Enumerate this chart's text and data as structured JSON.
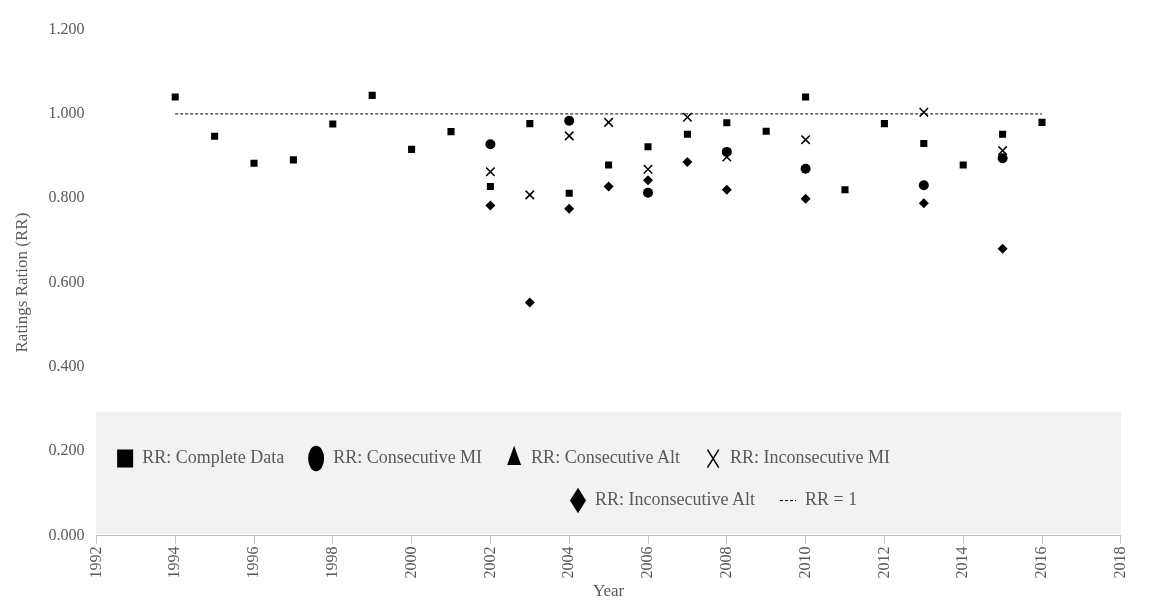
{
  "chart_data": {
    "type": "scatter",
    "xlabel": "Year",
    "ylabel": "Ratings Ration (RR)",
    "x": [
      1994,
      1995,
      1996,
      1997,
      1998,
      1999,
      2000,
      2001,
      2002,
      2003,
      2004,
      2005,
      2006,
      2007,
      2008,
      2009,
      2010,
      2011,
      2012,
      2013,
      2014,
      2015,
      2016
    ],
    "xlim": [
      1992,
      2018
    ],
    "xticks": [
      1992,
      1994,
      1996,
      1998,
      2000,
      2002,
      2004,
      2006,
      2008,
      2010,
      2012,
      2014,
      2016,
      2018
    ],
    "ylim": [
      0,
      1.2
    ],
    "yticks": [
      {
        "value": 0,
        "label": "0.000"
      },
      {
        "value": 0.2,
        "label": "0.200"
      },
      {
        "value": 0.4,
        "label": "0.400"
      },
      {
        "value": 0.6,
        "label": "0.600"
      },
      {
        "value": 0.8,
        "label": "0.800"
      },
      {
        "value": 1,
        "label": "1.000"
      },
      {
        "value": 1.2,
        "label": "1.200"
      }
    ],
    "legend": "bottom",
    "series": [
      {
        "name": "RR: Complete Data",
        "color": "#000000",
        "marker": "square",
        "values": [
          1.04,
          0.947,
          0.883,
          0.891,
          0.976,
          1.044,
          0.916,
          0.958,
          0.828,
          0.977,
          0.812,
          0.879,
          0.922,
          0.952,
          0.979,
          0.959,
          1.04,
          0.82,
          0.977,
          0.93,
          0.879,
          0.952,
          0.98
        ]
      },
      {
        "name": "RR: Consecutive MI",
        "color": "#000000",
        "marker": "circle",
        "values": [
          null,
          null,
          null,
          null,
          null,
          null,
          null,
          null,
          0.928,
          null,
          0.984,
          null,
          0.813,
          null,
          0.91,
          null,
          0.87,
          null,
          null,
          0.831,
          null,
          0.895,
          null
        ]
      },
      {
        "name": "RR: Consecutive Alt",
        "color": "#000000",
        "marker": "triangle",
        "values": [
          null,
          null,
          null,
          null,
          null,
          null,
          null,
          null,
          null,
          null,
          null,
          null,
          null,
          null,
          null,
          null,
          null,
          null,
          null,
          null,
          null,
          null,
          null
        ]
      },
      {
        "name": "RR: Inconsecutive MI",
        "color": "#000000",
        "marker": "cross",
        "values": [
          null,
          null,
          null,
          null,
          null,
          null,
          null,
          null,
          0.863,
          0.808,
          0.948,
          0.98,
          0.869,
          0.992,
          0.898,
          null,
          0.939,
          null,
          null,
          1.004,
          null,
          0.913,
          null
        ]
      },
      {
        "name": "RR: Inconsecutive Alt",
        "color": "#000000",
        "marker": "diamond",
        "values": [
          null,
          null,
          null,
          null,
          null,
          null,
          null,
          null,
          0.783,
          0.553,
          0.775,
          0.828,
          0.843,
          0.886,
          0.82,
          null,
          0.799,
          null,
          null,
          0.788,
          null,
          0.68,
          null
        ]
      },
      {
        "name": "RR = 1",
        "type": "line",
        "color": "#000000",
        "marker": "none",
        "line_style": "dashed",
        "x": [
          1994,
          2016
        ],
        "values": [
          1,
          1
        ]
      }
    ]
  }
}
